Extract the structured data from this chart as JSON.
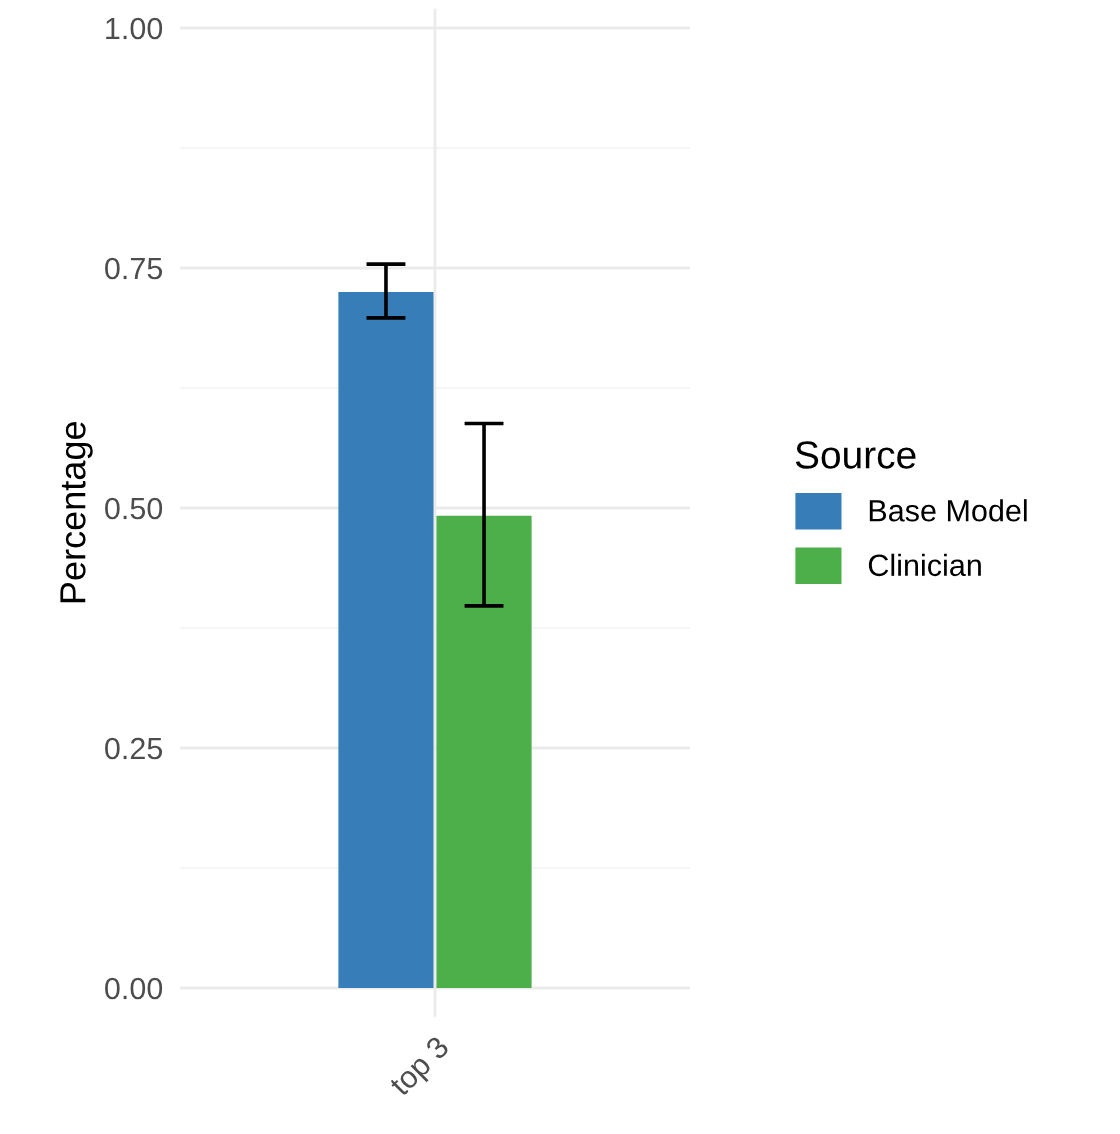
{
  "chart_data": {
    "type": "bar",
    "ylabel": "Percentage",
    "legend_title": "Source",
    "categories": [
      "top 3"
    ],
    "series": [
      {
        "name": "Base Model",
        "color": "#377eb8",
        "values": [
          0.725
        ],
        "errors": [
          [
            0.698,
            0.754
          ]
        ]
      },
      {
        "name": "Clinician",
        "color": "#4daf4a",
        "values": [
          0.492
        ],
        "errors": [
          [
            0.398,
            0.588
          ]
        ]
      }
    ],
    "ylim": [
      -0.03,
      1.02
    ],
    "yticks": [
      {
        "value": 0,
        "label": "0.00"
      },
      {
        "value": 0.25,
        "label": "0.25"
      },
      {
        "value": 0.5,
        "label": "0.50"
      },
      {
        "value": 0.75,
        "label": "0.75"
      },
      {
        "value": 1,
        "label": "1.00"
      }
    ],
    "grid": true,
    "legend": "right"
  }
}
